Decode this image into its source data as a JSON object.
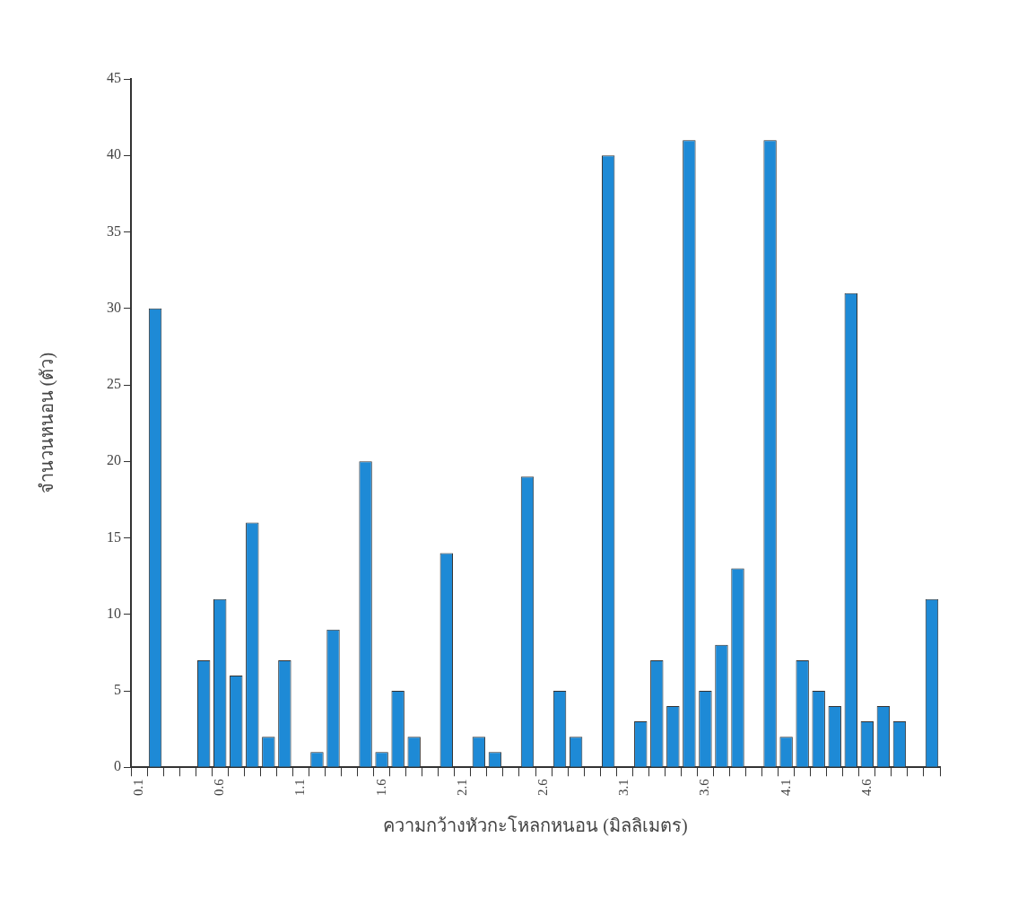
{
  "chart_data": {
    "type": "bar",
    "xlabel": "ความกว้างหัวกะโหลกหนอน (มิลลิเมตร)",
    "ylabel": "จำนวนหนอน (ตัว)",
    "categories": [
      "0.1",
      null,
      null,
      null,
      null,
      "0.6",
      null,
      null,
      null,
      null,
      "1.1",
      null,
      null,
      null,
      null,
      "1.6",
      null,
      null,
      null,
      null,
      "2.1",
      null,
      null,
      null,
      null,
      "2.6",
      null,
      null,
      null,
      null,
      "3.1",
      null,
      null,
      null,
      null,
      "3.6",
      null,
      null,
      null,
      null,
      "4.1",
      null,
      null,
      null,
      null,
      "4.6",
      null,
      null,
      null,
      null
    ],
    "values": [
      0,
      30,
      0,
      0,
      7,
      11,
      6,
      16,
      2,
      7,
      0,
      1,
      9,
      0,
      20,
      1,
      5,
      2,
      0,
      14,
      0,
      2,
      1,
      0,
      19,
      0,
      5,
      2,
      0,
      40,
      0,
      3,
      7,
      4,
      41,
      5,
      8,
      13,
      0,
      41,
      2,
      7,
      5,
      4,
      31,
      3,
      4,
      3,
      0,
      11
    ],
    "color": "#1e8ad6",
    "ylim": [
      0,
      45
    ],
    "yticks": [
      0,
      5,
      10,
      15,
      20,
      25,
      30,
      35,
      40,
      45
    ]
  }
}
